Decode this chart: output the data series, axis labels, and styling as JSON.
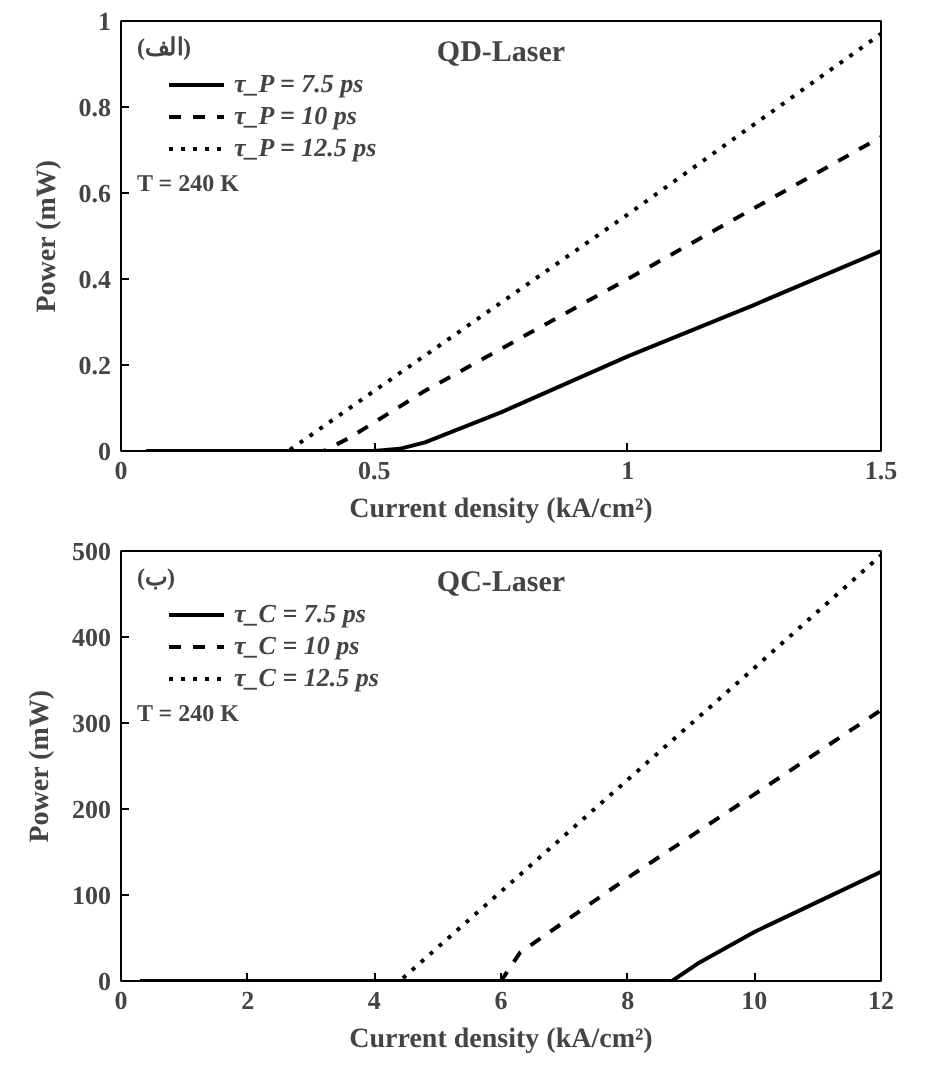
{
  "chart_data": [
    {
      "type": "line",
      "title": "QD-Laser",
      "xlabel": "Current density (kA/cm²)",
      "ylabel": "Power (mW)",
      "annotations": [
        "(الف)",
        "T = 240 K"
      ],
      "xlim": [
        0,
        1.5
      ],
      "xticks": [
        0,
        0.5,
        1,
        1.5
      ],
      "ylim": [
        0,
        1
      ],
      "yticks": [
        0,
        0.2,
        0.4,
        0.6,
        0.8,
        1
      ],
      "grid": false,
      "legend": "top left",
      "marker": "none",
      "series": [
        {
          "name": "τ_P = 7.5 ps",
          "color": "#000000",
          "line_style": "solid",
          "x": [
            0.05,
            0.5,
            0.55,
            0.6,
            0.75,
            1.0,
            1.25,
            1.5
          ],
          "values": [
            0,
            0,
            0.005,
            0.02,
            0.09,
            0.22,
            0.34,
            0.465
          ]
        },
        {
          "name": "τ_P = 10 ps",
          "color": "#000000",
          "line_style": "dashed",
          "x": [
            0.05,
            0.4,
            0.45,
            0.6,
            1.0,
            1.5
          ],
          "values": [
            0,
            0,
            0.03,
            0.14,
            0.4,
            0.73
          ]
        },
        {
          "name": "τ_P = 12.5 ps",
          "color": "#000000",
          "line_style": "dotted",
          "x": [
            0.05,
            0.33,
            0.5,
            1.0,
            1.5
          ],
          "values": [
            0,
            0,
            0.14,
            0.55,
            0.97
          ]
        }
      ]
    },
    {
      "type": "line",
      "title": "QC-Laser",
      "xlabel": "Current density (kA/cm²)",
      "ylabel": "Power (mW)",
      "annotations": [
        "(ب)",
        "T = 240 K"
      ],
      "xlim": [
        0,
        12
      ],
      "xticks": [
        0,
        2,
        4,
        6,
        8,
        10,
        12
      ],
      "ylim": [
        0,
        500
      ],
      "yticks": [
        0,
        100,
        200,
        300,
        400,
        500
      ],
      "grid": false,
      "legend": "top left",
      "marker": "none",
      "series": [
        {
          "name": "τ_C = 7.5 ps",
          "color": "#000000",
          "line_style": "solid",
          "x": [
            0.3,
            8.7,
            9.1,
            10,
            11,
            12
          ],
          "values": [
            0,
            0,
            20,
            57,
            92,
            127
          ]
        },
        {
          "name": "τ_C = 10 ps",
          "color": "#000000",
          "line_style": "dashed",
          "x": [
            0.3,
            6.0,
            6.3,
            8,
            10,
            12
          ],
          "values": [
            0,
            0,
            33,
            120,
            217,
            315
          ]
        },
        {
          "name": "τ_C = 12.5 ps",
          "color": "#000000",
          "line_style": "dotted",
          "x": [
            0.3,
            4.4,
            8,
            10,
            12
          ],
          "values": [
            0,
            0,
            234,
            364,
            495
          ]
        }
      ]
    }
  ]
}
